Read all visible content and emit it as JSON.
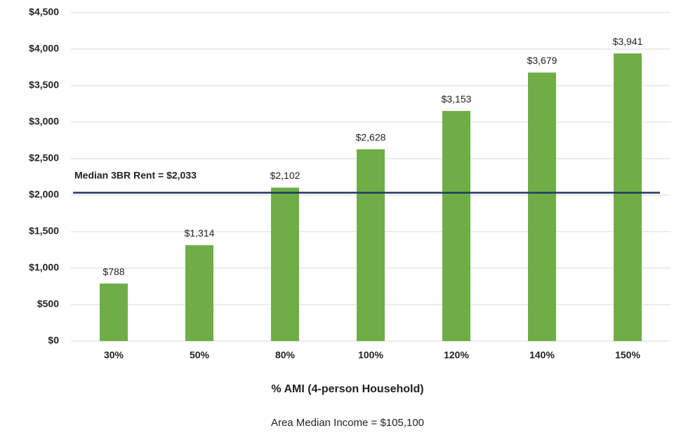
{
  "chart_data": {
    "type": "bar",
    "categories": [
      "30%",
      "50%",
      "80%",
      "100%",
      "120%",
      "140%",
      "150%"
    ],
    "values": [
      788,
      1314,
      2102,
      2628,
      3153,
      3679,
      3941
    ],
    "value_labels": [
      "$788",
      "$1,314",
      "$2,102",
      "$2,628",
      "$3,153",
      "$3,679",
      "$3,941"
    ],
    "color": "#70ad47",
    "ylim": [
      0,
      4500
    ],
    "yticks": [
      {
        "value": 0,
        "label": "$0"
      },
      {
        "value": 500,
        "label": "$500"
      },
      {
        "value": 1000,
        "label": "$1,000"
      },
      {
        "value": 1500,
        "label": "$1,500"
      },
      {
        "value": 2000,
        "label": "$2,000"
      },
      {
        "value": 2500,
        "label": "$2,500"
      },
      {
        "value": 3000,
        "label": "$3,000"
      },
      {
        "value": 3500,
        "label": "$3,500"
      },
      {
        "value": 4000,
        "label": "$4,000"
      },
      {
        "value": 4500,
        "label": "$4,500"
      }
    ],
    "grid": true,
    "reference_line": {
      "value": 2033,
      "label": "Median 3BR Rent = $2,033",
      "color": "#1f3864"
    },
    "x_label": "% AMI (4-person Household)",
    "note": "Area Median Income = $105,100"
  }
}
